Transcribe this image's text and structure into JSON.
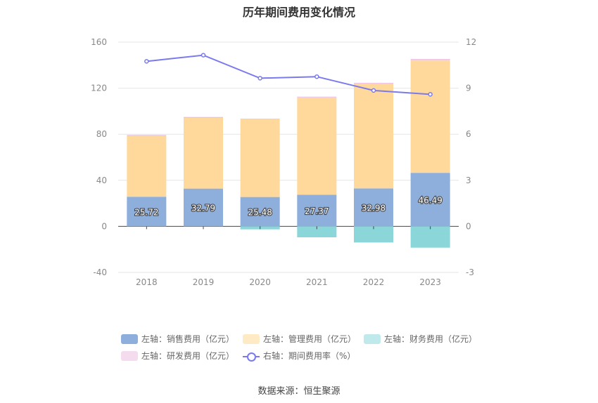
{
  "title": "历年期间费用变化情况",
  "source": "数据来源：恒生聚源",
  "chart_data": {
    "type": "bar",
    "categories": [
      "2018",
      "2019",
      "2020",
      "2021",
      "2022",
      "2023"
    ],
    "left_axis": {
      "min": -40,
      "max": 160,
      "ticks": [
        "160",
        "120",
        "80",
        "40",
        "0",
        "-40"
      ]
    },
    "right_axis": {
      "min": -3,
      "max": 12,
      "ticks": [
        "12",
        "9",
        "6",
        "3",
        "0",
        "-3"
      ]
    },
    "series": [
      {
        "name": "左轴：销售费用（亿元）",
        "kind": "bar",
        "axis": "left",
        "color": "#8eaedb",
        "values": [
          25.72,
          32.79,
          25.48,
          27.37,
          32.98,
          46.49
        ],
        "labels": [
          "25.72",
          "32.79",
          "25.48",
          "27.37",
          "32.98",
          "46.49"
        ]
      },
      {
        "name": "左轴：管理费用（亿元）",
        "kind": "bar",
        "axis": "left",
        "color": "#ffd99b",
        "values": [
          53.0,
          61.5,
          67.5,
          84.5,
          90.5,
          97.5
        ]
      },
      {
        "name": "左轴：财务费用（亿元）",
        "kind": "bar",
        "axis": "left",
        "color": "#8bd6d8",
        "values": [
          0.3,
          0.2,
          -2.6,
          -9.5,
          -14.0,
          -18.5
        ]
      },
      {
        "name": "左轴：研发费用（亿元）",
        "kind": "bar",
        "axis": "left",
        "color": "#f1c6e6",
        "values": [
          0.4,
          0.5,
          0.6,
          0.8,
          1.2,
          1.4
        ]
      },
      {
        "name": "右轴：期间费用率（%）",
        "kind": "line",
        "axis": "right",
        "color": "#7a7aee",
        "values": [
          10.75,
          11.15,
          9.65,
          9.75,
          8.85,
          8.6
        ]
      }
    ]
  }
}
